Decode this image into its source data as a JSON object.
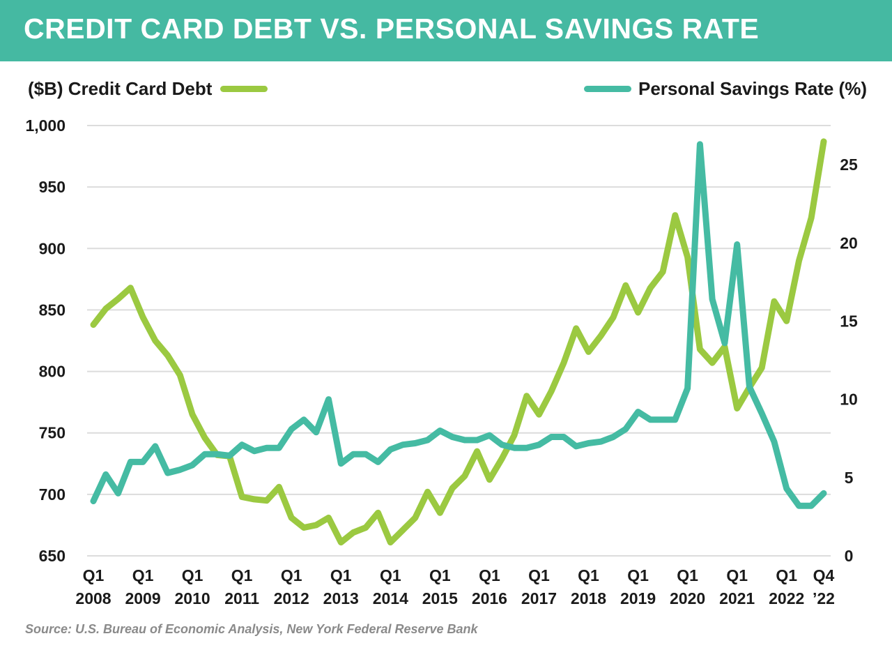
{
  "title": "CREDIT CARD DEBT VS. PERSONAL SAVINGS RATE",
  "source": "Source: U.S. Bureau of Economic Analysis, New York Federal Reserve Bank",
  "chart_data": {
    "type": "line",
    "title": "CREDIT CARD DEBT VS. PERSONAL SAVINGS RATE",
    "x_range": [
      "Q1 2008",
      "Q4 2022"
    ],
    "x_tick_labels": [
      [
        "Q1",
        "2008"
      ],
      [
        "Q1",
        "2009"
      ],
      [
        "Q1",
        "2010"
      ],
      [
        "Q1",
        "2011"
      ],
      [
        "Q1",
        "2012"
      ],
      [
        "Q1",
        "2013"
      ],
      [
        "Q1",
        "2014"
      ],
      [
        "Q1",
        "2015"
      ],
      [
        "Q1",
        "2016"
      ],
      [
        "Q1",
        "2017"
      ],
      [
        "Q1",
        "2018"
      ],
      [
        "Q1",
        "2019"
      ],
      [
        "Q1",
        "2020"
      ],
      [
        "Q1",
        "2021"
      ],
      [
        "Q1",
        "2022"
      ],
      [
        "Q4",
        "’22"
      ]
    ],
    "y_left": {
      "label": "($B) Credit Card Debt",
      "range": [
        650,
        1000
      ],
      "ticks": [
        "650",
        "700",
        "750",
        "800",
        "850",
        "900",
        "950",
        "1,000"
      ]
    },
    "y_right": {
      "label": "Personal Savings Rate (%)",
      "range": [
        0,
        27.5
      ],
      "ticks": [
        "0",
        "5",
        "10",
        "15",
        "20",
        "25"
      ]
    },
    "grid": true,
    "legend_placement": "top",
    "series": [
      {
        "name": "($B) Credit Card Debt",
        "axis": "left",
        "color": "#9bc941",
        "values": [
          838,
          851,
          859,
          868,
          844,
          825,
          813,
          797,
          765,
          746,
          732,
          731,
          698,
          696,
          695,
          706,
          681,
          673,
          675,
          681,
          661,
          669,
          673,
          685,
          661,
          671,
          681,
          702,
          685,
          705,
          715,
          735,
          712,
          729,
          748,
          780,
          765,
          784,
          807,
          835,
          816,
          829,
          844,
          870,
          848,
          868,
          881,
          927,
          893,
          818,
          807,
          820,
          770,
          787,
          803,
          857,
          841,
          890,
          925,
          987
        ]
      },
      {
        "name": "Personal Savings Rate (%)",
        "axis": "right",
        "color": "#45bba3",
        "values": [
          3.5,
          5.2,
          4.0,
          6.0,
          6.0,
          7.0,
          5.3,
          5.5,
          5.8,
          6.5,
          6.5,
          6.4,
          7.1,
          6.7,
          6.9,
          6.9,
          8.1,
          8.7,
          7.9,
          10.0,
          5.9,
          6.5,
          6.5,
          6.0,
          6.8,
          7.1,
          7.2,
          7.4,
          8.0,
          7.6,
          7.4,
          7.4,
          7.7,
          7.1,
          6.9,
          6.9,
          7.1,
          7.6,
          7.6,
          7.0,
          7.2,
          7.3,
          7.6,
          8.1,
          9.2,
          8.7,
          8.7,
          8.7,
          10.7,
          26.3,
          16.4,
          13.6,
          19.9,
          10.8,
          9.1,
          7.3,
          4.3,
          3.2,
          3.2,
          4.0
        ]
      }
    ]
  }
}
